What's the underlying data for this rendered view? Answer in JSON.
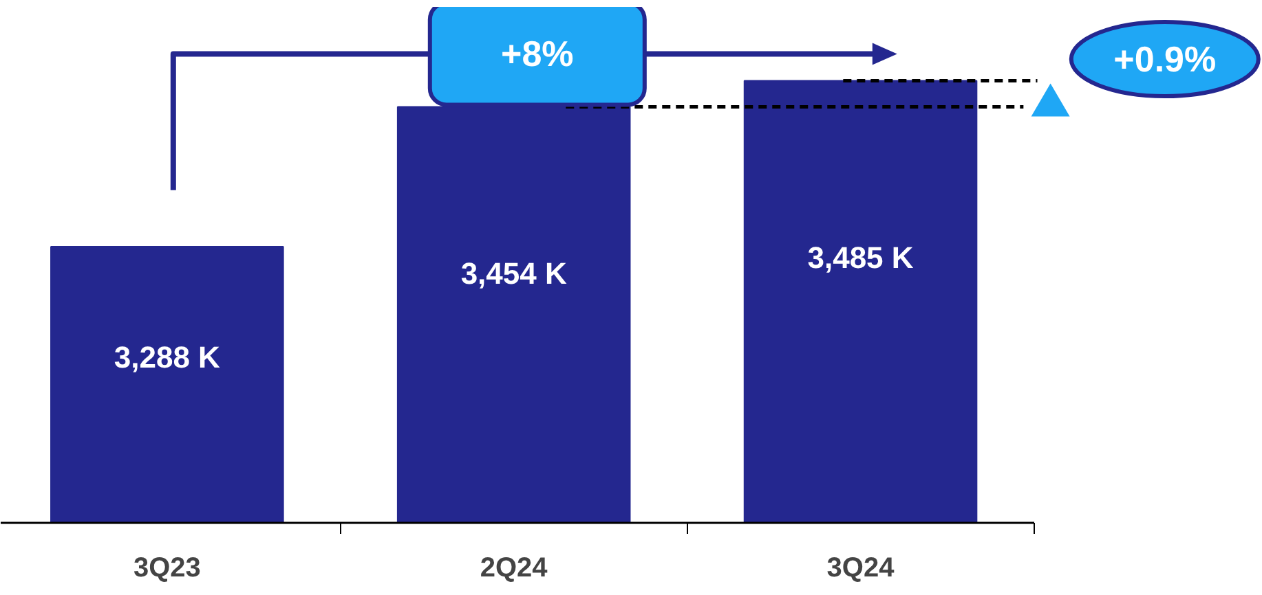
{
  "chart_data": {
    "type": "bar",
    "categories": [
      "3Q23",
      "2Q24",
      "3Q24"
    ],
    "values": [
      3288,
      3454,
      3485
    ],
    "color": "#24278f",
    "ylim": [
      2960,
      3580
    ],
    "data_labels": true,
    "value_labels": [
      "3,288 K",
      "3,454 K",
      "3,485 K"
    ],
    "ref_lines": [
      {
        "axis": "y",
        "value": 3454,
        "color": "#000000",
        "line_style": "dashed"
      },
      {
        "axis": "y",
        "value": 3485,
        "color": "#000000",
        "line_style": "dashed"
      }
    ],
    "annotations": [
      "+8%",
      "+0.9%"
    ]
  }
}
